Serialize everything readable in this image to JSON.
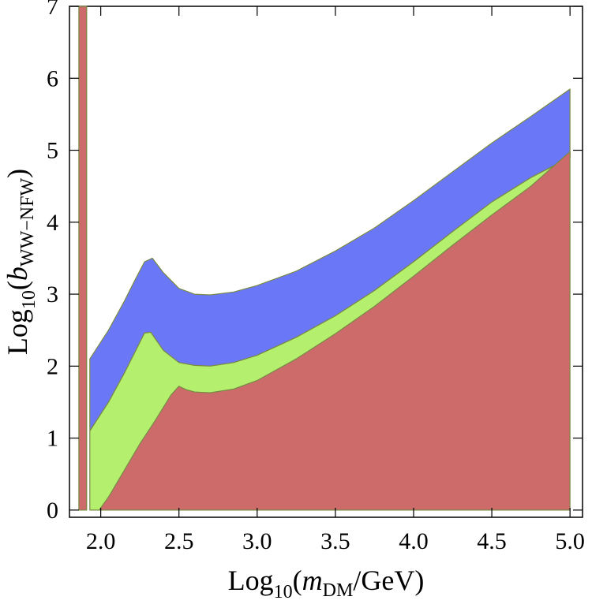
{
  "chart_data": {
    "type": "area",
    "title": "",
    "xlabel": {
      "prefix": "Log",
      "base": "10",
      "open": "(",
      "var": "m",
      "var_sub": "DM",
      "unit": "/GeV)"
    },
    "ylabel": {
      "prefix": "Log",
      "base": "10",
      "open": "(",
      "var": "b",
      "var_sub": "WW−NFW",
      "close": ")"
    },
    "xlim": [
      1.8,
      5.08
    ],
    "ylim": [
      -0.1,
      7.0
    ],
    "xticks": [
      "2.0",
      "2.5",
      "3.0",
      "3.5",
      "4.0",
      "4.5",
      "5.0"
    ],
    "yticks": [
      "0",
      "1",
      "2",
      "3",
      "4",
      "5",
      "6",
      "7"
    ],
    "grid": false,
    "colors": {
      "upper_band": "#6a77f7",
      "middle_band": "#b4f06e",
      "lower_region": "#cd6b6b",
      "boundary": "#7a8a45",
      "frame": "#000000"
    },
    "vertical_strip": {
      "x": [
        1.86,
        1.91
      ],
      "y": [
        0,
        7
      ]
    },
    "upper_curve": {
      "x": [
        1.93,
        2.05,
        2.15,
        2.22,
        2.28,
        2.33,
        2.4,
        2.5,
        2.6,
        2.7,
        2.85,
        3.0,
        3.25,
        3.5,
        3.75,
        4.0,
        4.25,
        4.5,
        4.75,
        5.0
      ],
      "y": [
        2.1,
        2.5,
        2.9,
        3.2,
        3.45,
        3.5,
        3.3,
        3.08,
        3.0,
        2.99,
        3.03,
        3.12,
        3.32,
        3.6,
        3.92,
        4.3,
        4.7,
        5.1,
        5.47,
        5.85
      ]
    },
    "middle_curve": {
      "x": [
        1.93,
        2.05,
        2.15,
        2.22,
        2.28,
        2.32,
        2.4,
        2.5,
        2.6,
        2.7,
        2.85,
        3.0,
        3.25,
        3.5,
        3.75,
        4.0,
        4.25,
        4.5,
        4.75,
        5.0
      ],
      "y": [
        1.1,
        1.5,
        1.9,
        2.2,
        2.46,
        2.47,
        2.22,
        2.05,
        2.01,
        2.0,
        2.05,
        2.15,
        2.4,
        2.7,
        3.05,
        3.45,
        3.87,
        4.28,
        4.62,
        4.9
      ]
    },
    "lower_curve": {
      "x": [
        1.99,
        2.05,
        2.15,
        2.25,
        2.35,
        2.45,
        2.5,
        2.55,
        2.6,
        2.7,
        2.85,
        3.0,
        3.25,
        3.5,
        3.75,
        4.0,
        4.25,
        4.5,
        4.75,
        5.0
      ],
      "y": [
        0.0,
        0.18,
        0.55,
        0.92,
        1.25,
        1.6,
        1.72,
        1.67,
        1.64,
        1.63,
        1.68,
        1.8,
        2.1,
        2.45,
        2.83,
        3.25,
        3.68,
        4.1,
        4.5,
        4.98
      ]
    }
  }
}
